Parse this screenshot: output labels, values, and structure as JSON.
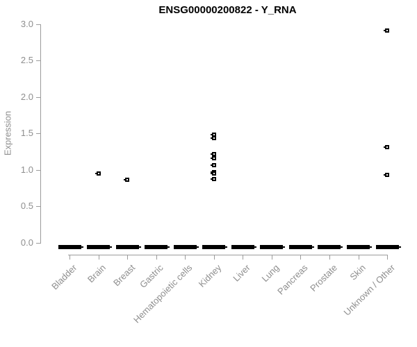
{
  "page": {
    "background": "#ffffff"
  },
  "colors": {
    "marker": "#000000",
    "title_text": "#000000",
    "axis_line": "#9b9b9b",
    "axis_text": "#8e8e8e"
  },
  "chart_data": {
    "type": "scatter",
    "title": "ENSG00000200822 - Y_RNA",
    "xlabel": "",
    "ylabel": "Expression",
    "ylim": [
      0.0,
      3.0
    ],
    "yticks": [
      0.0,
      0.5,
      1.0,
      1.5,
      2.0,
      2.5,
      3.0
    ],
    "grid": false,
    "legend": false,
    "marker_shape": "open-square",
    "categories": [
      "Bladder",
      "Brain",
      "Breast",
      "Gastric",
      "Hematopoietic cells",
      "Kidney",
      "Liver",
      "Lung",
      "Pancreas",
      "Prostate",
      "Skin",
      "Unknown / Other"
    ],
    "points": [
      {
        "category": "Brain",
        "value": 0.95
      },
      {
        "category": "Breast",
        "value": 0.86
      },
      {
        "category": "Kidney",
        "value": 1.48
      },
      {
        "category": "Kidney",
        "value": 1.43
      },
      {
        "category": "Kidney",
        "value": 1.21
      },
      {
        "category": "Kidney",
        "value": 1.16
      },
      {
        "category": "Kidney",
        "value": 1.06
      },
      {
        "category": "Kidney",
        "value": 0.97
      },
      {
        "category": "Kidney",
        "value": 0.95
      },
      {
        "category": "Kidney",
        "value": 0.87
      },
      {
        "category": "Unknown / Other",
        "value": 2.91
      },
      {
        "category": "Unknown / Other",
        "value": 1.31
      },
      {
        "category": "Unknown / Other",
        "value": 0.93
      }
    ],
    "zero_clusters": {
      "description": "dense bar of overlapping points at expression 0 in every category",
      "value": 0.0,
      "categories": [
        "Bladder",
        "Brain",
        "Breast",
        "Gastric",
        "Hematopoietic cells",
        "Kidney",
        "Liver",
        "Lung",
        "Pancreas",
        "Prostate",
        "Skin",
        "Unknown / Other"
      ]
    }
  }
}
